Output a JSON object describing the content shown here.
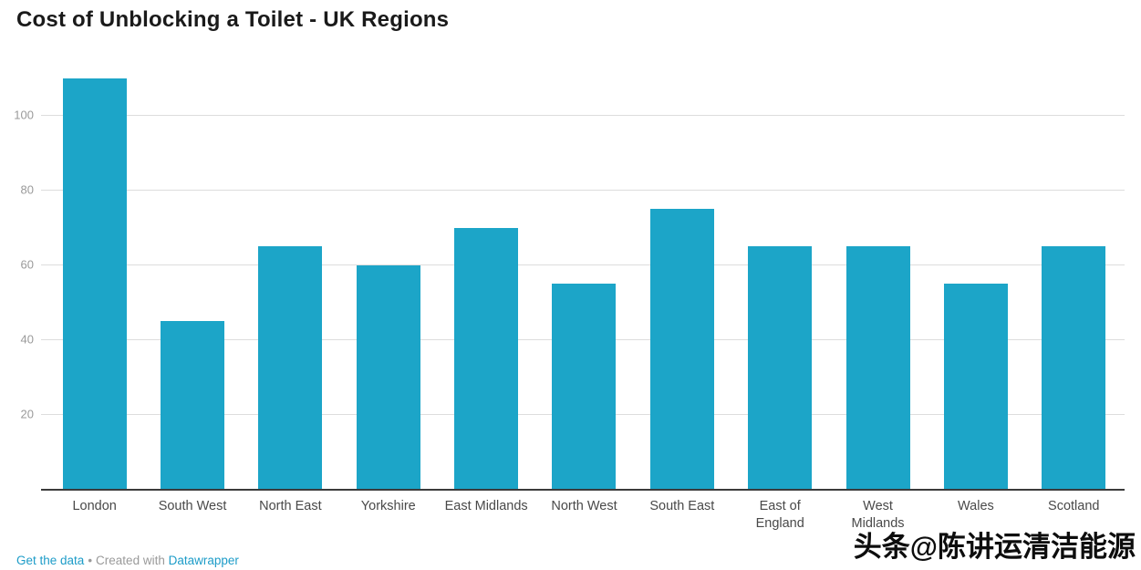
{
  "title": "Cost of Unblocking a Toilet - UK Regions",
  "footer": {
    "get_data_label": "Get the data",
    "separator": "•",
    "created_with": "Created with",
    "tool_link": "Datawrapper"
  },
  "watermark": "头条@陈讲运清洁能源",
  "colors": {
    "bar": "#1ca5c8",
    "link": "#1d9cc8",
    "grid": "#dddddd",
    "axis": "#3b3b3b",
    "tick_label": "#9a9a9a",
    "axis_label": "#494949",
    "title": "#1a1a1a"
  },
  "chart_data": {
    "type": "bar",
    "title": "Cost of Unblocking a Toilet - UK Regions",
    "categories": [
      "London",
      "South West",
      "North East",
      "Yorkshire",
      "East Midlands",
      "North West",
      "South East",
      "East of\nEngland",
      "West\nMidlands",
      "Wales",
      "Scotland"
    ],
    "values": [
      110,
      45,
      65,
      60,
      70,
      55,
      75,
      65,
      65,
      55,
      65
    ],
    "xlabel": "",
    "ylabel": "",
    "yticks": [
      20,
      40,
      60,
      80,
      100
    ],
    "ylim": [
      0,
      117
    ],
    "grid": true,
    "legend": false,
    "bar_color": "#1ca5c8"
  }
}
